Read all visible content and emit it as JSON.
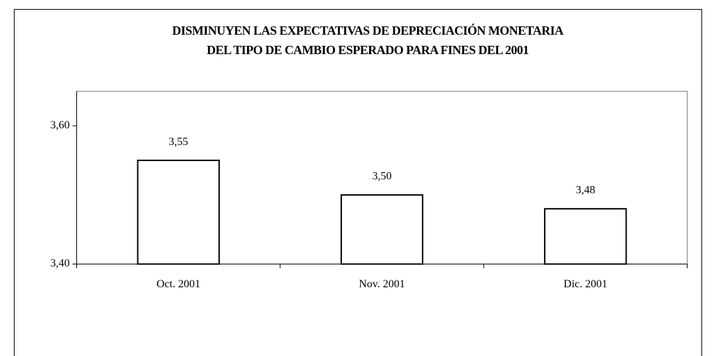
{
  "chart_data": {
    "type": "bar",
    "title": [
      "DISMINUYEN LAS EXPECTATIVAS DE DEPRECIACIÓN MONETARIA",
      "DEL TIPO DE CAMBIO ESPERADO PARA FINES DEL 2001"
    ],
    "categories": [
      "Oct. 2001",
      "Nov. 2001",
      "Dic. 2001"
    ],
    "values": [
      3.55,
      3.5,
      3.48
    ],
    "value_labels": [
      "3,55",
      "3,50",
      "3,48"
    ],
    "color": "#ffffff",
    "ylim": [
      3.4,
      3.65
    ],
    "yticks": [
      {
        "value": 3.4,
        "label": "3,40"
      },
      {
        "value": 3.6,
        "label": "3,60"
      }
    ],
    "grid": false
  }
}
